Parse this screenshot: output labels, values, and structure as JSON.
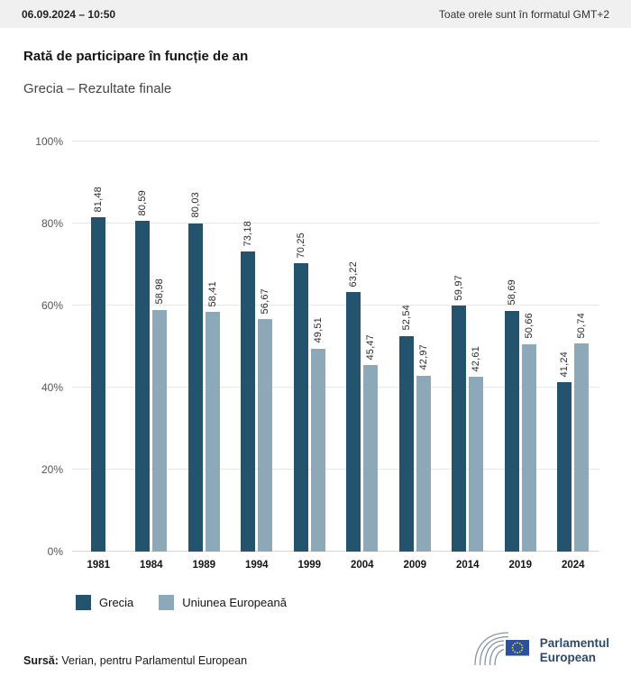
{
  "header": {
    "datetime": "06.09.2024 – 10:50",
    "timezone_note": "Toate orele sunt în formatul GMT+2"
  },
  "title": "Rată de participare în funcție de an",
  "subtitle": "Grecia – Rezultate finale",
  "chart_data": {
    "type": "bar",
    "title": "Rată de participare în funcție de an",
    "subtitle": "Grecia – Rezultate finale",
    "categories": [
      "1981",
      "1984",
      "1989",
      "1994",
      "1999",
      "2004",
      "2009",
      "2014",
      "2019",
      "2024"
    ],
    "series": [
      {
        "name": "Grecia",
        "color": "#24536e",
        "values": [
          81.48,
          80.59,
          80.03,
          73.18,
          70.25,
          63.22,
          52.54,
          59.97,
          58.69,
          41.24
        ],
        "labels": [
          "81,48",
          "80,59",
          "80,03",
          "73,18",
          "70,25",
          "63,22",
          "52,54",
          "59,97",
          "58,69",
          "41,24"
        ]
      },
      {
        "name": "Uniunea Europeană",
        "color": "#8da8b8",
        "values": [
          null,
          58.98,
          58.41,
          56.67,
          49.51,
          45.47,
          42.97,
          42.61,
          50.66,
          50.74
        ],
        "labels": [
          null,
          "58,98",
          "58,41",
          "56,67",
          "49,51",
          "45,47",
          "42,97",
          "42,61",
          "50,66",
          "50,74"
        ]
      }
    ],
    "ylim": [
      0,
      100
    ],
    "yticks": [
      "0%",
      "20%",
      "40%",
      "60%",
      "80%",
      "100%"
    ],
    "grid": true,
    "legend_position": "bottom-left",
    "value_label_rotation": -90
  },
  "footer": {
    "source_label": "Sursă:",
    "source_text": " Verian, pentru Parlamentul European",
    "logo_line1": "Parlamentul",
    "logo_line2": "European"
  }
}
